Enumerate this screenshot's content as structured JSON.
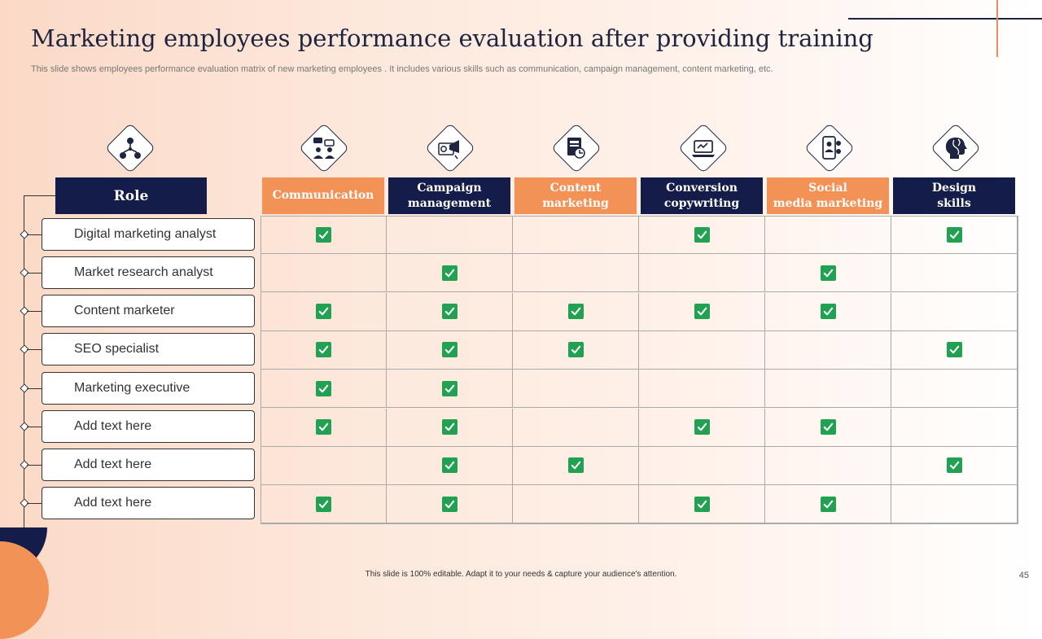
{
  "slide": {
    "title": "Marketing employees performance evaluation after providing training",
    "subtitle": "This slide shows employees performance evaluation matrix of new marketing employees . It includes various skills such as communication, campaign management, content marketing, etc.",
    "footer": "This slide is 100% editable.  Adapt it to your needs & capture your audience's attention.",
    "page_number": "45"
  },
  "colors": {
    "navy": "#141c4a",
    "orange": "#f39257",
    "check_green": "#21a151",
    "title": "#1f2440"
  },
  "matrix": {
    "role_header": "Role",
    "columns": [
      {
        "label": "Communication",
        "icon": "team-discussion-icon"
      },
      {
        "label": "Campaign\nmanagement",
        "icon": "campaign-megaphone-icon"
      },
      {
        "label": "Content\nmarketing",
        "icon": "content-document-icon"
      },
      {
        "label": "Conversion\ncopywriting",
        "icon": "laptop-conversion-icon"
      },
      {
        "label": "Social\nmedia marketing",
        "icon": "social-media-phone-icon"
      },
      {
        "label": "Design\nskills",
        "icon": "creative-head-icon"
      }
    ],
    "role_icon": "roles-network-icon",
    "rows": [
      {
        "role": "Digital marketing analyst",
        "checks": [
          true,
          false,
          false,
          true,
          false,
          true
        ]
      },
      {
        "role": "Market research analyst",
        "checks": [
          false,
          true,
          false,
          false,
          true,
          false
        ]
      },
      {
        "role": "Content marketer",
        "checks": [
          true,
          true,
          true,
          true,
          true,
          false
        ]
      },
      {
        "role": "SEO specialist",
        "checks": [
          true,
          true,
          true,
          false,
          false,
          true
        ]
      },
      {
        "role": "Marketing executive",
        "checks": [
          true,
          true,
          false,
          false,
          false,
          false
        ]
      },
      {
        "role": "Add text here",
        "checks": [
          true,
          true,
          false,
          true,
          true,
          false
        ]
      },
      {
        "role": "Add text here",
        "checks": [
          false,
          true,
          true,
          false,
          false,
          true
        ]
      },
      {
        "role": "Add text here",
        "checks": [
          true,
          true,
          false,
          true,
          true,
          false
        ]
      }
    ]
  }
}
